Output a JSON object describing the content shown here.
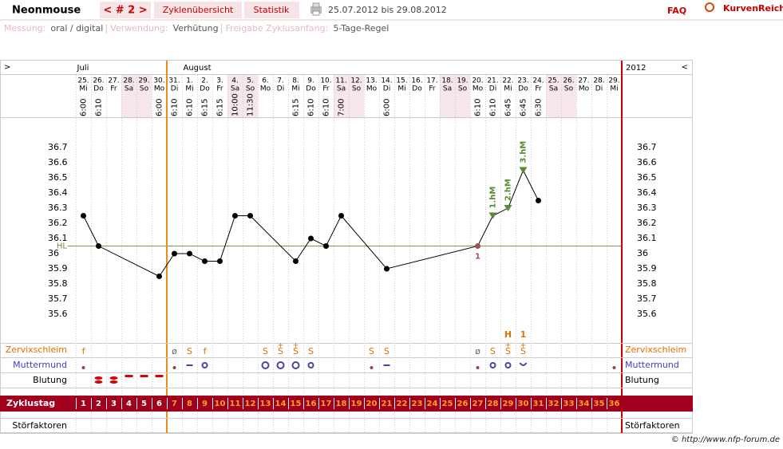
{
  "header": {
    "user": "Neonmouse",
    "cycle_nav": "< # 2 >",
    "tabs": [
      "Zyklenübersicht",
      "Statistik"
    ],
    "date_range": "25.07.2012 bis 29.08.2012",
    "faq": "FAQ",
    "logo": "KurvenReich"
  },
  "settings": [
    {
      "label": "Messung:",
      "value": "oral / digital"
    },
    {
      "label": "Verwendung:",
      "value": "Verhütung"
    },
    {
      "label": "Freigabe Zyklusanfang:",
      "value": "5-Tage-Regel"
    }
  ],
  "chart": {
    "nav_left": ">",
    "nav_right": "<",
    "year": "2012",
    "months": [
      "Juli",
      "August"
    ],
    "dates": [
      "25.",
      "26.",
      "27.",
      "28.",
      "29.",
      "30.",
      "31.",
      "1.",
      "2.",
      "3.",
      "4.",
      "5.",
      "6.",
      "7.",
      "8.",
      "9.",
      "10.",
      "11.",
      "12.",
      "13.",
      "14.",
      "15.",
      "16.",
      "17.",
      "18.",
      "19.",
      "20.",
      "21.",
      "22.",
      "23.",
      "24.",
      "25.",
      "26.",
      "27.",
      "28.",
      "29."
    ],
    "weekdays": [
      "Mi",
      "Do",
      "Fr",
      "Sa",
      "So",
      "Mo",
      "Di",
      "Mi",
      "Do",
      "Fr",
      "Sa",
      "So",
      "Mo",
      "Di",
      "Mi",
      "Do",
      "Fr",
      "Sa",
      "So",
      "Mo",
      "Di",
      "Mi",
      "Do",
      "Fr",
      "Sa",
      "So",
      "Mo",
      "Di",
      "Mi",
      "Do",
      "Fr",
      "Sa",
      "So",
      "Mo",
      "Di",
      "Mi"
    ],
    "times": [
      "6:00",
      "6:10",
      null,
      null,
      null,
      "6:00",
      "6:10",
      "6:10",
      "6:15",
      "6:15",
      "10:00",
      "11:30",
      null,
      null,
      "6:15",
      "6:10",
      "6:10",
      "7:00",
      null,
      null,
      "6:00",
      null,
      null,
      null,
      null,
      null,
      "6:10",
      "6:10",
      "6:45",
      "6:45",
      "6:30",
      null,
      null,
      null,
      null,
      null
    ],
    "yticks": [
      36.7,
      36.6,
      36.5,
      36.4,
      36.3,
      36.2,
      36.1,
      36,
      35.9,
      35.8,
      35.7,
      35.6
    ],
    "coverline": {
      "label": "HL",
      "value": 36.05
    },
    "temperature": {
      "days": [
        1,
        2,
        6,
        7,
        8,
        9,
        10,
        11,
        12,
        15,
        16,
        17,
        18,
        21,
        27,
        28,
        29,
        30,
        31
      ],
      "values": [
        36.25,
        36.05,
        35.85,
        36.0,
        36.0,
        35.95,
        35.95,
        36.25,
        36.25,
        35.95,
        36.1,
        36.05,
        36.25,
        35.9,
        36.05,
        36.25,
        36.3,
        36.55,
        36.35
      ]
    },
    "excluded": {
      "day": 27,
      "label": "1"
    },
    "peaks": [
      {
        "day": 28,
        "label": "1.hM"
      },
      {
        "day": 29,
        "label": "2.hM"
      },
      {
        "day": 30,
        "label": "3.hM"
      }
    ],
    "rows": {
      "mucus": "Zervixschleim",
      "cervix": "Muttermund",
      "bleeding": "Blutung",
      "disturbances": "Störfaktoren"
    },
    "mucus": [
      {
        "day": 1,
        "symbol": "f"
      },
      {
        "day": 7,
        "symbol": "ø"
      },
      {
        "day": 8,
        "symbol": "S"
      },
      {
        "day": 9,
        "symbol": "f"
      },
      {
        "day": 13,
        "symbol": "S"
      },
      {
        "day": 14,
        "symbol": "S",
        "plus": "+"
      },
      {
        "day": 15,
        "symbol": "S",
        "plus": "+"
      },
      {
        "day": 16,
        "symbol": "S"
      },
      {
        "day": 20,
        "symbol": "S"
      },
      {
        "day": 21,
        "symbol": "S"
      },
      {
        "day": 27,
        "symbol": "ø"
      },
      {
        "day": 28,
        "symbol": "S"
      },
      {
        "day": 29,
        "symbol": "S",
        "plus": "+",
        "note": "H"
      },
      {
        "day": 30,
        "symbol": "S",
        "plus": "+",
        "note": "1"
      }
    ],
    "cycle_label": "Zyklustag",
    "cycle_days": [
      1,
      2,
      3,
      4,
      5,
      6,
      7,
      8,
      9,
      10,
      11,
      12,
      13,
      14,
      15,
      16,
      17,
      18,
      19,
      20,
      21,
      22,
      23,
      24,
      25,
      26,
      27,
      28,
      29,
      30,
      31,
      32,
      33,
      34,
      35,
      36
    ]
  },
  "footer": {
    "copyright": "© http://www.nfp-forum.de"
  }
}
